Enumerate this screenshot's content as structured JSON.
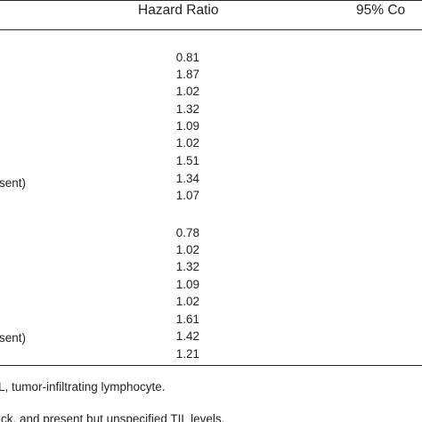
{
  "table": {
    "headers": {
      "hazard_ratio": "Hazard Ratio",
      "ci": "95% Co"
    },
    "group1": {
      "values": [
        "0.81",
        "1.87",
        "1.02",
        "1.32",
        "1.09",
        "1.02",
        "1.51",
        "1.34",
        "1.07"
      ],
      "row_label_fragment": "sent)"
    },
    "group2": {
      "values": [
        "0.78",
        "1.02",
        "1.32",
        "1.09",
        "1.02",
        "1.61",
        "1.42",
        "1.21"
      ],
      "row_label_fragment": "sent)"
    }
  },
  "footnotes": {
    "line1": "L, tumor-infiltrating lymphocyte.",
    "line2": "ick, and present but unspecified TIL levels."
  }
}
